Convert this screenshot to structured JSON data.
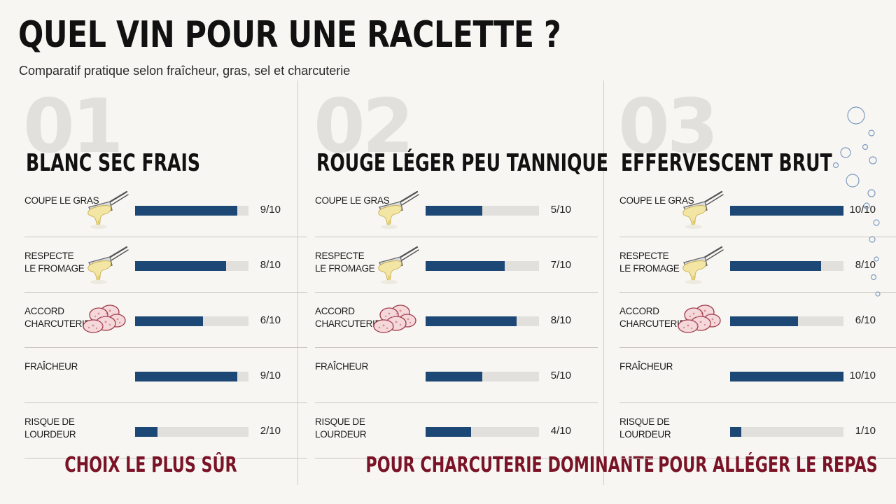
{
  "title": "QUEL VIN POUR UNE RACLETTE ?",
  "subtitle": "Comparatif pratique selon fraîcheur, gras, sel et charcuterie",
  "colors": {
    "bar": "#1d4876",
    "track": "#e1e0dd",
    "verdict": "#7a1326",
    "number": "#e2e0dc"
  },
  "chart_data": {
    "type": "bar",
    "orientation": "horizontal",
    "scale_max": 10,
    "criteria": [
      "COUPE LE GRAS",
      "RESPECTE\nLE FROMAGE",
      "ACCORD\nCHARCUTERIE",
      "FRAÎCHEUR",
      "RISQUE DE\nLOURDEUR"
    ],
    "criteria_icons": [
      "raclette-scraper-icon",
      "raclette-scraper-icon",
      "charcuterie-icon",
      "",
      ""
    ],
    "series": [
      {
        "number": "01",
        "name": "BLANC SEC FRAIS",
        "values": [
          9,
          8,
          6,
          9,
          2
        ],
        "labels": [
          "9/10",
          "8/10",
          "6/10",
          "9/10",
          "2/10"
        ],
        "verdict": "CHOIX LE PLUS SÛR"
      },
      {
        "number": "02",
        "name": "ROUGE LÉGER PEU TANNIQUE",
        "values": [
          5,
          7,
          8,
          5,
          4
        ],
        "labels": [
          "5/10",
          "7/10",
          "8/10",
          "5/10",
          "4/10"
        ],
        "verdict": "POUR CHARCUTERIE DOMINANTE"
      },
      {
        "number": "03",
        "name": "EFFERVESCENT BRUT",
        "values": [
          10,
          8,
          6,
          10,
          1
        ],
        "labels": [
          "10/10",
          "8/10",
          "6/10",
          "10/10",
          "1/10"
        ],
        "verdict": "POUR ALLÉGER LE REPAS"
      }
    ]
  }
}
